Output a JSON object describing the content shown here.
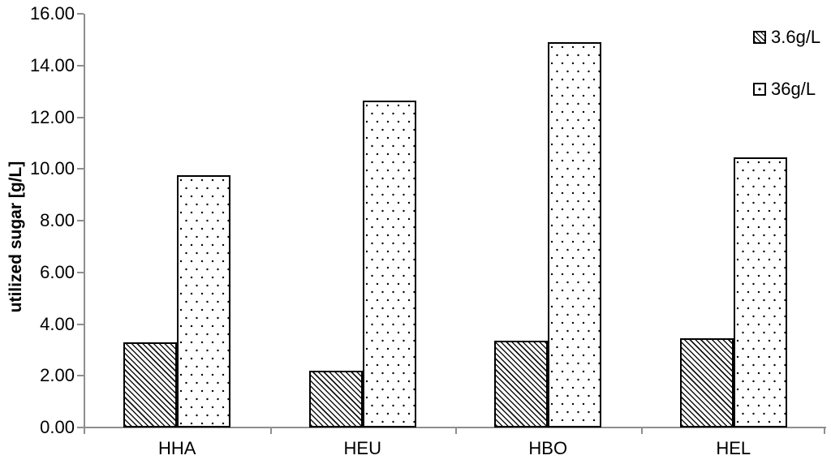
{
  "chart_data": {
    "type": "bar",
    "title": "",
    "categories": [
      "HHA",
      "HEU",
      "HBO",
      "HEL"
    ],
    "series": [
      {
        "name": "3.6g/L",
        "pattern": "diagonal-hatch",
        "values": [
          3.3,
          2.2,
          3.35,
          3.45
        ]
      },
      {
        "name": "36g/L",
        "pattern": "dots",
        "values": [
          9.75,
          12.65,
          14.9,
          10.45
        ]
      }
    ],
    "xlabel": "",
    "ylabel": "utilized sugar [g/L]",
    "ylim": [
      0,
      16
    ],
    "ytick_step": 2,
    "ytick_labels": [
      "0.00",
      "2.00",
      "4.00",
      "6.00",
      "8.00",
      "10.00",
      "12.00",
      "14.00",
      "16.00"
    ],
    "grid": false,
    "legend_position": "top-right",
    "colors": {
      "bar_fill": "#ffffff",
      "bar_border": "#000000",
      "axis": "#8e8e8e",
      "text": "#000000"
    }
  }
}
